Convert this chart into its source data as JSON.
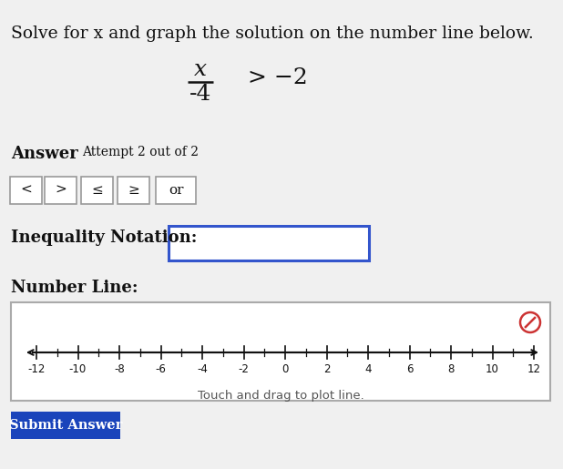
{
  "title": "Solve for x and graph the solution on the number line below.",
  "equation_numerator": "x",
  "equation_denominator": "-4",
  "equation_operator": "> −2",
  "answer_label": "Answer",
  "attempt_label": "Attempt 2 out of 2",
  "buttons": [
    "<",
    ">",
    "≤",
    "≥",
    "or"
  ],
  "inequality_label": "Inequality Notation:",
  "number_line_label": "Number Line:",
  "drag_label": "Touch and drag to plot line.",
  "submit_label": "Submit Answer",
  "number_line_ticks": [
    -12,
    -10,
    -8,
    -6,
    -4,
    -2,
    0,
    2,
    4,
    6,
    8,
    10,
    12
  ],
  "page_bg": "#f0f0f0",
  "white": "#ffffff",
  "button_bg": "#f0f0f0",
  "button_border": "#999999",
  "input_border": "#3355cc",
  "number_line_border": "#aaaaaa",
  "submit_bg": "#1a44bb",
  "submit_text_color": "#ffffff",
  "cancel_color": "#cc3333",
  "text_color": "#111111",
  "gray_text": "#555555"
}
